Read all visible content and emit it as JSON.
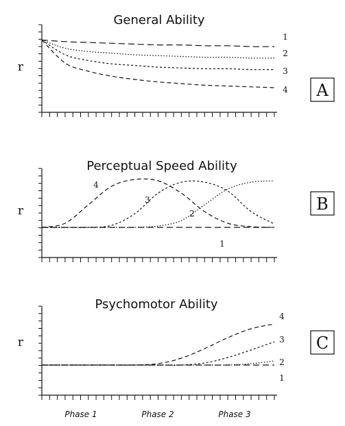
{
  "chart_data": [
    {
      "type": "line",
      "panel": "A",
      "title": "General Ability",
      "ylabel": "r",
      "xlabel": "",
      "x_range": [
        0,
        30
      ],
      "ylim": [
        0,
        1
      ],
      "grid": false,
      "series": [
        {
          "name": "1",
          "x": [
            0,
            3,
            6,
            9,
            12,
            15,
            18,
            21,
            24,
            27,
            30
          ],
          "values": [
            0.88,
            0.86,
            0.85,
            0.84,
            0.83,
            0.82,
            0.82,
            0.81,
            0.81,
            0.8,
            0.8
          ]
        },
        {
          "name": "2",
          "x": [
            0,
            3,
            6,
            9,
            12,
            15,
            18,
            21,
            24,
            27,
            30
          ],
          "values": [
            0.88,
            0.78,
            0.74,
            0.72,
            0.7,
            0.69,
            0.68,
            0.67,
            0.67,
            0.66,
            0.66
          ]
        },
        {
          "name": "3",
          "x": [
            0,
            3,
            6,
            9,
            12,
            15,
            18,
            21,
            24,
            27,
            30
          ],
          "values": [
            0.88,
            0.7,
            0.63,
            0.59,
            0.57,
            0.55,
            0.54,
            0.53,
            0.53,
            0.52,
            0.52
          ]
        },
        {
          "name": "4",
          "x": [
            0,
            3,
            6,
            9,
            12,
            15,
            18,
            21,
            24,
            27,
            30
          ],
          "values": [
            0.88,
            0.6,
            0.5,
            0.44,
            0.4,
            0.37,
            0.35,
            0.33,
            0.32,
            0.31,
            0.3
          ]
        }
      ]
    },
    {
      "type": "line",
      "panel": "B",
      "title": "Perceptual Speed Ability",
      "ylabel": "r",
      "xlabel": "",
      "x_range": [
        0,
        30
      ],
      "ylim": [
        0,
        1
      ],
      "grid": false,
      "series": [
        {
          "name": "1",
          "x": [
            0,
            3,
            6,
            9,
            12,
            15,
            18,
            21,
            24,
            27,
            30
          ],
          "values": [
            0.22,
            0.22,
            0.22,
            0.22,
            0.22,
            0.22,
            0.22,
            0.22,
            0.22,
            0.22,
            0.22
          ]
        },
        {
          "name": "2",
          "x": [
            0,
            3,
            6,
            9,
            12,
            15,
            18,
            21,
            24,
            27,
            30
          ],
          "values": [
            0.22,
            0.22,
            0.22,
            0.22,
            0.22,
            0.24,
            0.32,
            0.55,
            0.78,
            0.88,
            0.9
          ]
        },
        {
          "name": "3",
          "x": [
            0,
            3,
            6,
            9,
            12,
            15,
            18,
            21,
            24,
            27,
            30
          ],
          "values": [
            0.22,
            0.22,
            0.22,
            0.25,
            0.42,
            0.72,
            0.88,
            0.88,
            0.75,
            0.45,
            0.27
          ]
        },
        {
          "name": "4",
          "x": [
            0,
            3,
            6,
            9,
            12,
            15,
            18,
            21,
            24,
            27,
            30
          ],
          "values": [
            0.22,
            0.28,
            0.55,
            0.82,
            0.92,
            0.9,
            0.72,
            0.45,
            0.28,
            0.23,
            0.22
          ]
        }
      ]
    },
    {
      "type": "line",
      "panel": "C",
      "title": "Psychomotor Ability",
      "ylabel": "r",
      "xlabel": "",
      "x_range": [
        0,
        30
      ],
      "ylim": [
        0,
        1
      ],
      "grid": false,
      "x_tick_labels": [
        "Phase 1",
        "Phase 2",
        "Phase 3"
      ],
      "series": [
        {
          "name": "1",
          "x": [
            0,
            3,
            6,
            9,
            12,
            15,
            18,
            21,
            24,
            27,
            30
          ],
          "values": [
            0.22,
            0.22,
            0.22,
            0.22,
            0.22,
            0.22,
            0.22,
            0.22,
            0.22,
            0.22,
            0.22
          ]
        },
        {
          "name": "2",
          "x": [
            0,
            3,
            6,
            9,
            12,
            15,
            18,
            21,
            24,
            27,
            30
          ],
          "values": [
            0.22,
            0.22,
            0.22,
            0.22,
            0.22,
            0.22,
            0.22,
            0.22,
            0.22,
            0.24,
            0.28
          ]
        },
        {
          "name": "3",
          "x": [
            0,
            3,
            6,
            9,
            12,
            15,
            18,
            21,
            24,
            27,
            30
          ],
          "values": [
            0.22,
            0.22,
            0.22,
            0.22,
            0.22,
            0.22,
            0.22,
            0.25,
            0.33,
            0.44,
            0.56
          ]
        },
        {
          "name": "4",
          "x": [
            0,
            3,
            6,
            9,
            12,
            15,
            18,
            21,
            24,
            27,
            30
          ],
          "values": [
            0.22,
            0.22,
            0.22,
            0.22,
            0.22,
            0.24,
            0.32,
            0.46,
            0.62,
            0.75,
            0.82
          ]
        }
      ]
    }
  ]
}
